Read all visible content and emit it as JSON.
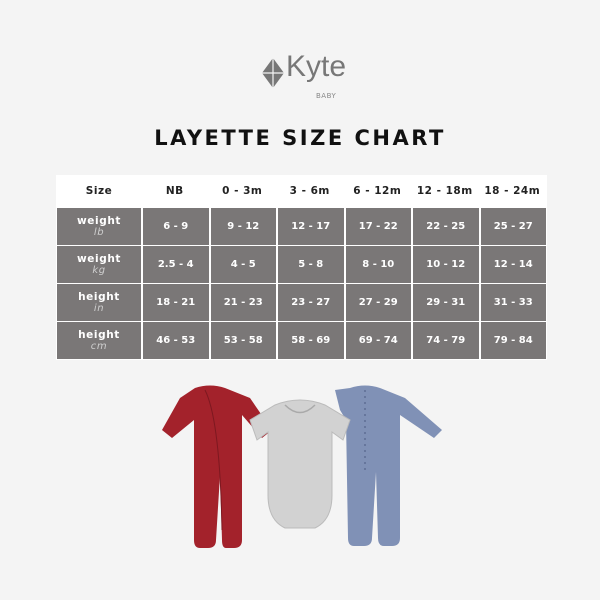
{
  "logo": {
    "brand": "Kyte",
    "sub": "BABY"
  },
  "title": "LAYETTE SIZE CHART",
  "table": {
    "headers": [
      "Size",
      "NB",
      "0 - 3m",
      "3 - 6m",
      "6 - 12m",
      "12 - 18m",
      "18 - 24m"
    ],
    "rows": [
      {
        "label": "weight",
        "unit": "lb",
        "values": [
          "6 - 9",
          "9 - 12",
          "12 - 17",
          "17 - 22",
          "22 - 25",
          "25 - 27"
        ]
      },
      {
        "label": "weight",
        "unit": "kg",
        "values": [
          "2.5 - 4",
          "4 - 5",
          "5 - 8",
          "8 - 10",
          "10 - 12",
          "12 - 14"
        ]
      },
      {
        "label": "height",
        "unit": "in",
        "values": [
          "18 - 21",
          "21 - 23",
          "23 - 27",
          "27 - 29",
          "29 - 31",
          "31 - 33"
        ]
      },
      {
        "label": "height",
        "unit": "cm",
        "values": [
          "46 - 53",
          "53 - 58",
          "58 - 69",
          "69 - 74",
          "74 - 79",
          "79 - 84"
        ]
      }
    ]
  },
  "colors": {
    "cell": "#7a7777",
    "red_romper": "#a3222b",
    "gray_bodysuit": "#d2d2d2",
    "blue_romper": "#8091b6"
  }
}
